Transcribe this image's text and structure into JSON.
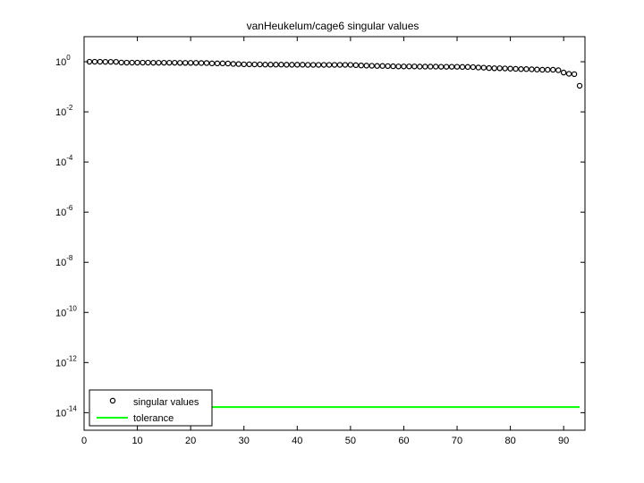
{
  "chart_data": {
    "type": "scatter",
    "title": "vanHeukelum/cage6 singular values",
    "xlabel": "",
    "ylabel": "",
    "xlim": [
      0,
      94
    ],
    "ylim_log10": [
      -14.7,
      1.0
    ],
    "y_scale": "log",
    "grid": false,
    "legend_position": "bottom-left",
    "x_ticks": [
      0,
      10,
      20,
      30,
      40,
      50,
      60,
      70,
      80,
      90
    ],
    "y_ticks": [
      {
        "base": "10",
        "exp": "0",
        "value": 1.0
      },
      {
        "base": "10",
        "exp": "-2",
        "value": 0.01
      },
      {
        "base": "10",
        "exp": "-4",
        "value": 0.0001
      },
      {
        "base": "10",
        "exp": "-6",
        "value": 1e-06
      },
      {
        "base": "10",
        "exp": "-8",
        "value": 1e-08
      },
      {
        "base": "10",
        "exp": "-10",
        "value": 1e-10
      },
      {
        "base": "10",
        "exp": "-12",
        "value": 1e-12
      },
      {
        "base": "10",
        "exp": "-14",
        "value": 1e-14
      }
    ],
    "series": [
      {
        "name": "singular values",
        "marker": "circle",
        "color": "#000000",
        "x": [
          1,
          2,
          3,
          4,
          5,
          6,
          7,
          8,
          9,
          10,
          11,
          12,
          13,
          14,
          15,
          16,
          17,
          18,
          19,
          20,
          21,
          22,
          23,
          24,
          25,
          26,
          27,
          28,
          29,
          30,
          31,
          32,
          33,
          34,
          35,
          36,
          37,
          38,
          39,
          40,
          41,
          42,
          43,
          44,
          45,
          46,
          47,
          48,
          49,
          50,
          51,
          52,
          53,
          54,
          55,
          56,
          57,
          58,
          59,
          60,
          61,
          62,
          63,
          64,
          65,
          66,
          67,
          68,
          69,
          70,
          71,
          72,
          73,
          74,
          75,
          76,
          77,
          78,
          79,
          80,
          81,
          82,
          83,
          84,
          85,
          86,
          87,
          88,
          89,
          90,
          91,
          92,
          93
        ],
        "values": [
          1.0,
          1.0,
          1.0,
          0.99,
          0.99,
          0.99,
          0.93,
          0.92,
          0.92,
          0.92,
          0.92,
          0.92,
          0.91,
          0.91,
          0.91,
          0.91,
          0.91,
          0.9,
          0.9,
          0.9,
          0.9,
          0.89,
          0.89,
          0.86,
          0.86,
          0.86,
          0.85,
          0.82,
          0.81,
          0.79,
          0.79,
          0.78,
          0.78,
          0.77,
          0.77,
          0.77,
          0.77,
          0.76,
          0.76,
          0.76,
          0.76,
          0.75,
          0.75,
          0.75,
          0.75,
          0.75,
          0.75,
          0.75,
          0.75,
          0.75,
          0.73,
          0.71,
          0.7,
          0.69,
          0.68,
          0.68,
          0.67,
          0.66,
          0.65,
          0.65,
          0.65,
          0.65,
          0.64,
          0.64,
          0.64,
          0.64,
          0.63,
          0.63,
          0.63,
          0.63,
          0.62,
          0.62,
          0.61,
          0.59,
          0.58,
          0.56,
          0.55,
          0.55,
          0.54,
          0.53,
          0.52,
          0.51,
          0.51,
          0.5,
          0.49,
          0.48,
          0.48,
          0.48,
          0.46,
          0.37,
          0.33,
          0.32,
          0.11
        ]
      },
      {
        "name": "tolerance",
        "marker": "line",
        "color": "#00ff00",
        "x": [
          1,
          93
        ],
        "values": [
          1.67e-14,
          1.67e-14
        ]
      }
    ]
  }
}
